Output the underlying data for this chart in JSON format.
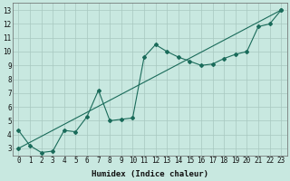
{
  "xlabel": "Humidex (Indice chaleur)",
  "bg_color": "#c8e8e0",
  "grid_color": "#a8c8c0",
  "line_color": "#1a6b5a",
  "xlim": [
    -0.5,
    23.5
  ],
  "ylim": [
    2.5,
    13.5
  ],
  "xticks": [
    0,
    1,
    2,
    3,
    4,
    5,
    6,
    7,
    8,
    9,
    10,
    11,
    12,
    13,
    14,
    15,
    16,
    17,
    18,
    19,
    20,
    21,
    22,
    23
  ],
  "yticks": [
    3,
    4,
    5,
    6,
    7,
    8,
    9,
    10,
    11,
    12,
    13
  ],
  "jagged_x": [
    0,
    1,
    2,
    3,
    4,
    5,
    6,
    7,
    8,
    9,
    10,
    11,
    12,
    13,
    14,
    15,
    16,
    17,
    18,
    19,
    20,
    21,
    22,
    23
  ],
  "jagged_y": [
    4.3,
    3.2,
    2.7,
    2.8,
    4.3,
    4.2,
    5.3,
    7.2,
    5.0,
    5.1,
    5.2,
    9.6,
    10.5,
    10.0,
    9.6,
    9.3,
    9.0,
    9.1,
    9.5,
    9.8,
    10.0,
    11.8,
    12.0,
    13.0
  ],
  "trend_x": [
    0,
    23
  ],
  "trend_y": [
    3.0,
    13.0
  ],
  "marker": "D",
  "markersize": 2.0,
  "linewidth": 0.8,
  "tick_fontsize": 5.5,
  "xlabel_fontsize": 6.5
}
